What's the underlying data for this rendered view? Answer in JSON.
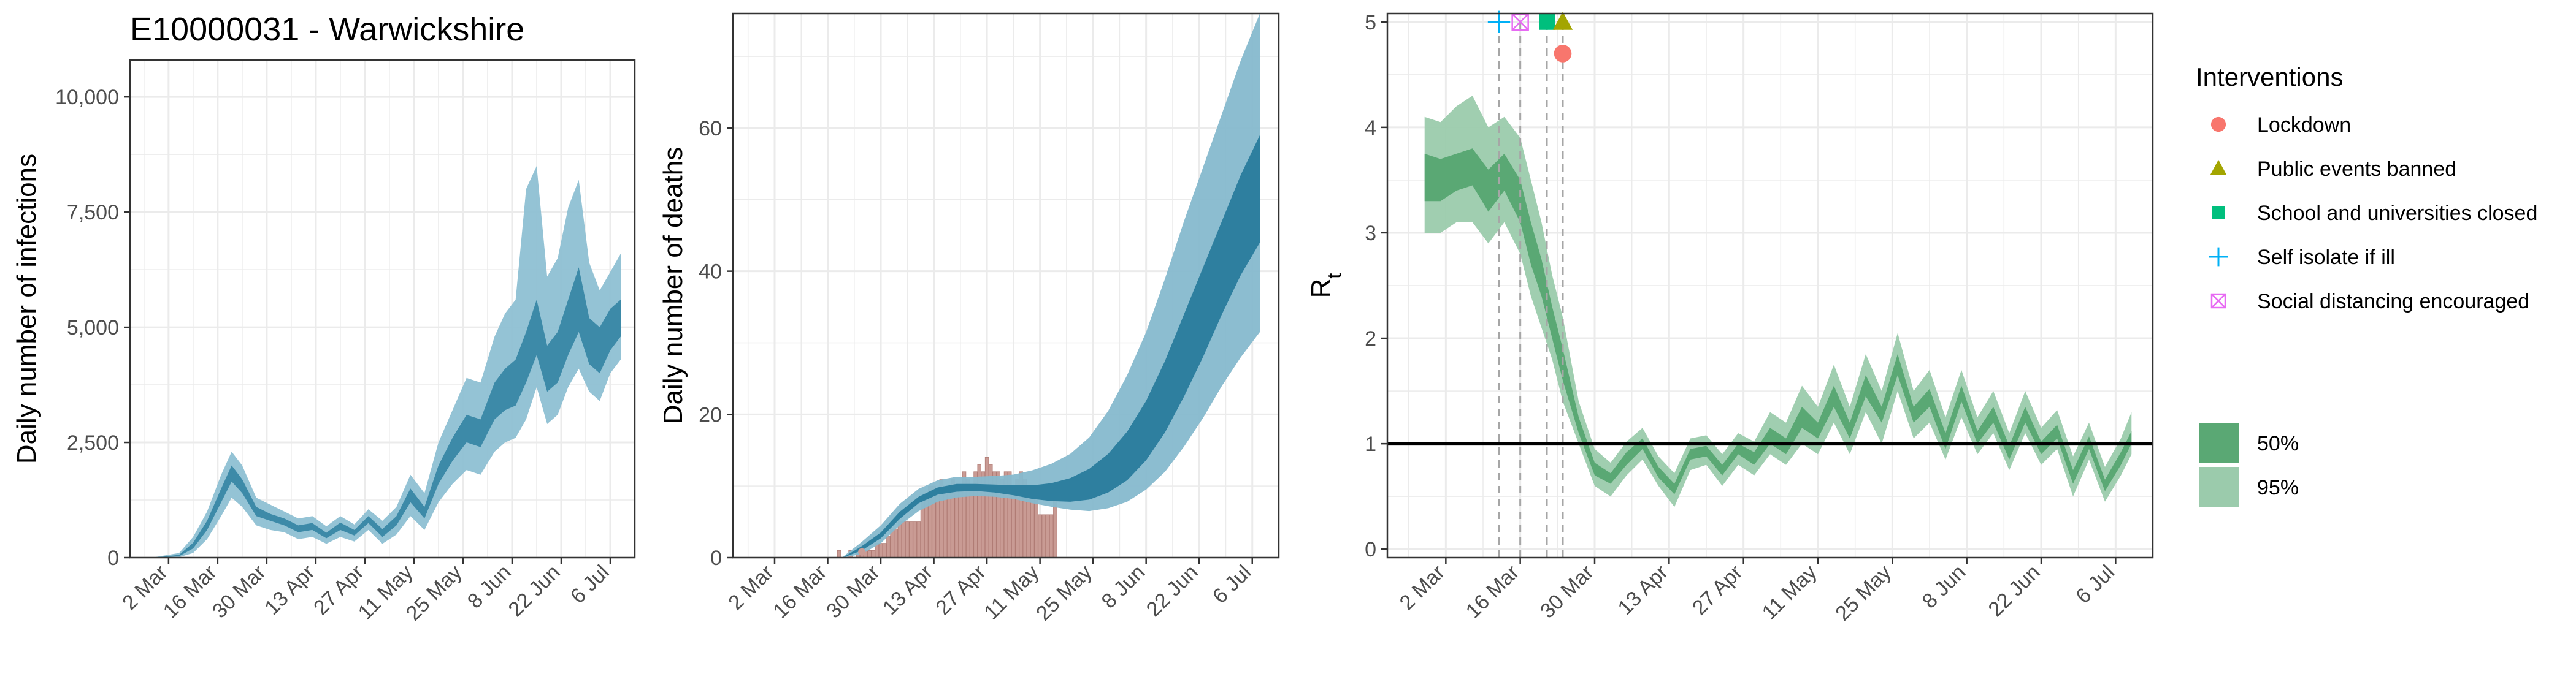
{
  "figure_title": "E10000031 - Warwickshire",
  "colors": {
    "infections_outer": "#8ec0d3",
    "infections_inner": "#3d8aa8",
    "deaths_outer": "#86b9cd",
    "deaths_inner": "#2e7f9f",
    "deaths_bar": "#c99b94",
    "rt_outer": "#9bcbac",
    "rt_inner": "#5aa874",
    "grid": "#ebebeb",
    "panel_border": "#333333"
  },
  "legend": {
    "interventions_title": "Interventions",
    "interventions": [
      {
        "label": "Lockdown",
        "shape": "circle",
        "color": "#f8766d"
      },
      {
        "label": "Public events banned",
        "shape": "triangle",
        "color": "#a3a500"
      },
      {
        "label": "School and universities closed",
        "shape": "square",
        "color": "#00bf7d"
      },
      {
        "label": "Self isolate if ill",
        "shape": "plus",
        "color": "#00b0f6"
      },
      {
        "label": "Social distancing encouraged",
        "shape": "boxcross",
        "color": "#e76bf3"
      }
    ],
    "band_title": "",
    "bands": [
      {
        "label": "50%",
        "color": "#5aa874"
      },
      {
        "label": "95%",
        "color": "#9bcbac"
      }
    ]
  },
  "chart_data": [
    {
      "id": "infections",
      "type": "area",
      "title": "E10000031 - Warwickshire",
      "xlabel": "",
      "ylabel": "Daily number of infections",
      "x_type": "date",
      "xlim": [
        "2020-02-20",
        "2020-07-13"
      ],
      "ylim": [
        0,
        10800
      ],
      "x_ticks": [
        {
          "date": "2020-03-02",
          "label": "2 Mar"
        },
        {
          "date": "2020-03-16",
          "label": "16 Mar"
        },
        {
          "date": "2020-03-30",
          "label": "30 Mar"
        },
        {
          "date": "2020-04-13",
          "label": "13 Apr"
        },
        {
          "date": "2020-04-27",
          "label": "27 Apr"
        },
        {
          "date": "2020-05-11",
          "label": "11 May"
        },
        {
          "date": "2020-05-25",
          "label": "25 May"
        },
        {
          "date": "2020-06-08",
          "label": "8 Jun"
        },
        {
          "date": "2020-06-22",
          "label": "22 Jun"
        },
        {
          "date": "2020-07-06",
          "label": "6 Jul"
        }
      ],
      "y_ticks": [
        {
          "value": 0,
          "label": "0"
        },
        {
          "value": 2500,
          "label": "2,500"
        },
        {
          "value": 5000,
          "label": "5,000"
        },
        {
          "value": 7500,
          "label": "7,500"
        },
        {
          "value": 10000,
          "label": "10,000"
        }
      ],
      "bands": {
        "dates": [
          "2020-02-27",
          "2020-03-05",
          "2020-03-09",
          "2020-03-13",
          "2020-03-17",
          "2020-03-20",
          "2020-03-23",
          "2020-03-27",
          "2020-03-31",
          "2020-04-04",
          "2020-04-08",
          "2020-04-12",
          "2020-04-16",
          "2020-04-20",
          "2020-04-24",
          "2020-04-28",
          "2020-05-02",
          "2020-05-06",
          "2020-05-10",
          "2020-05-14",
          "2020-05-18",
          "2020-05-22",
          "2020-05-26",
          "2020-05-30",
          "2020-06-03",
          "2020-06-06",
          "2020-06-09",
          "2020-06-12",
          "2020-06-15",
          "2020-06-18",
          "2020-06-21",
          "2020-06-24",
          "2020-06-27",
          "2020-06-30",
          "2020-07-03",
          "2020-07-06",
          "2020-07-09"
        ],
        "outer_low": [
          0,
          10,
          100,
          400,
          900,
          1300,
          1100,
          700,
          600,
          550,
          400,
          450,
          300,
          450,
          350,
          600,
          300,
          500,
          900,
          600,
          1200,
          1600,
          1900,
          1800,
          2300,
          2500,
          2600,
          3000,
          3700,
          2900,
          3100,
          3700,
          4100,
          3600,
          3400,
          4000,
          4300
        ],
        "inner_low": [
          0,
          30,
          200,
          600,
          1200,
          1650,
          1400,
          900,
          800,
          700,
          550,
          600,
          420,
          600,
          480,
          750,
          450,
          700,
          1200,
          850,
          1600,
          2100,
          2500,
          2400,
          3000,
          3200,
          3300,
          3800,
          4400,
          3600,
          3800,
          4400,
          4900,
          4200,
          4000,
          4500,
          4800
        ],
        "inner_high": [
          0,
          60,
          320,
          800,
          1500,
          2000,
          1700,
          1100,
          950,
          850,
          700,
          750,
          540,
          760,
          600,
          900,
          620,
          900,
          1500,
          1100,
          2000,
          2600,
          3100,
          3000,
          3800,
          4100,
          4300,
          4900,
          5600,
          4600,
          4900,
          5600,
          6300,
          5200,
          5000,
          5400,
          5600
        ],
        "outer_high": [
          10,
          100,
          450,
          1000,
          1800,
          2300,
          2000,
          1300,
          1150,
          1000,
          850,
          900,
          680,
          900,
          720,
          1050,
          800,
          1100,
          1800,
          1400,
          2500,
          3200,
          3900,
          3800,
          4800,
          5300,
          5600,
          8000,
          8500,
          6100,
          6500,
          7600,
          8200,
          6400,
          5800,
          6200,
          6600
        ]
      }
    },
    {
      "id": "deaths",
      "type": "area",
      "title": "",
      "xlabel": "",
      "ylabel": "Daily number of deaths",
      "x_type": "date",
      "xlim": [
        "2020-02-20",
        "2020-07-13"
      ],
      "ylim": [
        0,
        76
      ],
      "x_ticks": [
        {
          "date": "2020-03-02",
          "label": "2 Mar"
        },
        {
          "date": "2020-03-16",
          "label": "16 Mar"
        },
        {
          "date": "2020-03-30",
          "label": "30 Mar"
        },
        {
          "date": "2020-04-13",
          "label": "13 Apr"
        },
        {
          "date": "2020-04-27",
          "label": "27 Apr"
        },
        {
          "date": "2020-05-11",
          "label": "11 May"
        },
        {
          "date": "2020-05-25",
          "label": "25 May"
        },
        {
          "date": "2020-06-08",
          "label": "8 Jun"
        },
        {
          "date": "2020-06-22",
          "label": "22 Jun"
        },
        {
          "date": "2020-07-06",
          "label": "6 Jul"
        }
      ],
      "y_ticks": [
        {
          "value": 0,
          "label": "0"
        },
        {
          "value": 20,
          "label": "20"
        },
        {
          "value": 40,
          "label": "40"
        },
        {
          "value": 60,
          "label": "60"
        }
      ],
      "bands": {
        "dates": [
          "2020-03-20",
          "2020-03-25",
          "2020-03-30",
          "2020-04-04",
          "2020-04-09",
          "2020-04-14",
          "2020-04-19",
          "2020-04-24",
          "2020-04-29",
          "2020-05-04",
          "2020-05-09",
          "2020-05-14",
          "2020-05-19",
          "2020-05-24",
          "2020-05-29",
          "2020-06-03",
          "2020-06-08",
          "2020-06-13",
          "2020-06-18",
          "2020-06-23",
          "2020-06-28",
          "2020-07-03",
          "2020-07-08"
        ],
        "outer_low": [
          0,
          0.5,
          2,
          4.5,
          6.5,
          7.8,
          8.4,
          8.6,
          8.5,
          8.2,
          7.6,
          7.1,
          6.7,
          6.5,
          6.9,
          7.8,
          9.5,
          12,
          15.5,
          19.5,
          24,
          28,
          31.5
        ],
        "inner_low": [
          0,
          1,
          2.7,
          5.4,
          7.6,
          8.8,
          9.2,
          9.3,
          9.1,
          8.7,
          8.2,
          7.9,
          7.8,
          8.1,
          9.1,
          10.8,
          13.6,
          17.5,
          22.5,
          28,
          34,
          39.5,
          44
        ],
        "inner_high": [
          0,
          1.6,
          3.5,
          6.4,
          8.5,
          9.8,
          10.3,
          10.3,
          10.2,
          10.1,
          10.1,
          10.4,
          11.1,
          12.4,
          14.5,
          17.6,
          21.9,
          27.5,
          34,
          40.5,
          47,
          53.5,
          59
        ],
        "outer_high": [
          0.1,
          2.2,
          4.5,
          7.5,
          9.6,
          10.8,
          11.3,
          11.3,
          11.4,
          11.6,
          12.2,
          13.1,
          14.5,
          16.8,
          20.5,
          25.5,
          31.5,
          39,
          47,
          54.5,
          62,
          69.5,
          76
        ]
      },
      "observed_deaths": {
        "dates": [
          "2020-03-19",
          "2020-03-22",
          "2020-03-24",
          "2020-03-25",
          "2020-03-26",
          "2020-03-27",
          "2020-03-28",
          "2020-03-29",
          "2020-03-30",
          "2020-03-31",
          "2020-04-01",
          "2020-04-02",
          "2020-04-03",
          "2020-04-04",
          "2020-04-05",
          "2020-04-06",
          "2020-04-07",
          "2020-04-08",
          "2020-04-09",
          "2020-04-10",
          "2020-04-11",
          "2020-04-12",
          "2020-04-13",
          "2020-04-14",
          "2020-04-15",
          "2020-04-16",
          "2020-04-17",
          "2020-04-18",
          "2020-04-19",
          "2020-04-20",
          "2020-04-21",
          "2020-04-22",
          "2020-04-23",
          "2020-04-24",
          "2020-04-25",
          "2020-04-26",
          "2020-04-27",
          "2020-04-28",
          "2020-04-29",
          "2020-04-30",
          "2020-05-01",
          "2020-05-02",
          "2020-05-03",
          "2020-05-04",
          "2020-05-05",
          "2020-05-06",
          "2020-05-07",
          "2020-05-08",
          "2020-05-09",
          "2020-05-10",
          "2020-05-11",
          "2020-05-12",
          "2020-05-13",
          "2020-05-14",
          "2020-05-15"
        ],
        "values": [
          1,
          1,
          1,
          1,
          1,
          1,
          1,
          2,
          2,
          2,
          3,
          4,
          4,
          5,
          5,
          5,
          5,
          5,
          5,
          8,
          9,
          10,
          10,
          9,
          11,
          10,
          9,
          11,
          10,
          10,
          12,
          11,
          10,
          12,
          13,
          12,
          14,
          13,
          12,
          12,
          11,
          12,
          12,
          10,
          11,
          12,
          11,
          10,
          9,
          9,
          6,
          6,
          6,
          6,
          8
        ]
      },
      "reported_death_marker": {
        "date": "2020-03-25",
        "value": 0.8
      }
    },
    {
      "id": "rt",
      "type": "area",
      "title": "",
      "xlabel": "",
      "ylabel": "R",
      "ylabel_subscript": "t",
      "x_type": "date",
      "xlim": [
        "2020-02-20",
        "2020-07-13"
      ],
      "ylim": [
        -0.08,
        5.08
      ],
      "reference_line": 1,
      "x_ticks": [
        {
          "date": "2020-03-02",
          "label": "2 Mar"
        },
        {
          "date": "2020-03-16",
          "label": "16 Mar"
        },
        {
          "date": "2020-03-30",
          "label": "30 Mar"
        },
        {
          "date": "2020-04-13",
          "label": "13 Apr"
        },
        {
          "date": "2020-04-27",
          "label": "27 Apr"
        },
        {
          "date": "2020-05-11",
          "label": "11 May"
        },
        {
          "date": "2020-05-25",
          "label": "25 May"
        },
        {
          "date": "2020-06-08",
          "label": "8 Jun"
        },
        {
          "date": "2020-06-22",
          "label": "22 Jun"
        },
        {
          "date": "2020-07-06",
          "label": "6 Jul"
        }
      ],
      "y_ticks": [
        {
          "value": 0,
          "label": "0"
        },
        {
          "value": 1,
          "label": "1"
        },
        {
          "value": 2,
          "label": "2"
        },
        {
          "value": 3,
          "label": "3"
        },
        {
          "value": 4,
          "label": "4"
        },
        {
          "value": 5,
          "label": "5"
        }
      ],
      "bands": {
        "dates": [
          "2020-02-27",
          "2020-03-01",
          "2020-03-04",
          "2020-03-07",
          "2020-03-10",
          "2020-03-13",
          "2020-03-16",
          "2020-03-18",
          "2020-03-20",
          "2020-03-22",
          "2020-03-24",
          "2020-03-27",
          "2020-03-30",
          "2020-04-02",
          "2020-04-05",
          "2020-04-08",
          "2020-04-11",
          "2020-04-14",
          "2020-04-17",
          "2020-04-20",
          "2020-04-23",
          "2020-04-26",
          "2020-04-29",
          "2020-05-02",
          "2020-05-05",
          "2020-05-08",
          "2020-05-11",
          "2020-05-14",
          "2020-05-17",
          "2020-05-20",
          "2020-05-23",
          "2020-05-26",
          "2020-05-29",
          "2020-06-01",
          "2020-06-04",
          "2020-06-07",
          "2020-06-10",
          "2020-06-13",
          "2020-06-16",
          "2020-06-19",
          "2020-06-22",
          "2020-06-25",
          "2020-06-28",
          "2020-07-01",
          "2020-07-04",
          "2020-07-07",
          "2020-07-09"
        ],
        "outer_low": [
          3.0,
          3.0,
          3.1,
          3.1,
          2.9,
          3.1,
          2.8,
          2.4,
          2.1,
          1.8,
          1.4,
          1.0,
          0.6,
          0.5,
          0.7,
          0.85,
          0.6,
          0.4,
          0.75,
          0.8,
          0.6,
          0.8,
          0.7,
          0.9,
          0.8,
          1.0,
          0.9,
          1.2,
          0.9,
          1.3,
          1.0,
          1.5,
          1.05,
          1.2,
          0.85,
          1.25,
          0.9,
          1.1,
          0.75,
          1.1,
          0.8,
          0.95,
          0.5,
          0.85,
          0.45,
          0.7,
          0.9
        ],
        "inner_low": [
          3.3,
          3.3,
          3.4,
          3.45,
          3.2,
          3.4,
          3.1,
          2.7,
          2.4,
          2.0,
          1.6,
          1.1,
          0.7,
          0.62,
          0.8,
          0.95,
          0.68,
          0.52,
          0.85,
          0.88,
          0.7,
          0.9,
          0.8,
          1.0,
          0.9,
          1.15,
          1.05,
          1.35,
          1.05,
          1.45,
          1.2,
          1.65,
          1.2,
          1.35,
          0.95,
          1.4,
          1.0,
          1.2,
          0.85,
          1.2,
          0.9,
          1.05,
          0.62,
          0.95,
          0.55,
          0.8,
          1.0
        ],
        "inner_high": [
          3.75,
          3.7,
          3.75,
          3.8,
          3.6,
          3.75,
          3.5,
          3.1,
          2.75,
          2.3,
          1.9,
          1.25,
          0.82,
          0.72,
          0.92,
          1.05,
          0.78,
          0.62,
          0.95,
          0.98,
          0.8,
          1.0,
          0.92,
          1.15,
          1.05,
          1.35,
          1.2,
          1.55,
          1.2,
          1.65,
          1.35,
          1.85,
          1.35,
          1.52,
          1.1,
          1.55,
          1.12,
          1.35,
          0.98,
          1.35,
          1.02,
          1.18,
          0.75,
          1.07,
          0.66,
          0.92,
          1.12
        ],
        "outer_high": [
          4.1,
          4.05,
          4.2,
          4.3,
          4.0,
          4.1,
          3.9,
          3.5,
          3.1,
          2.6,
          2.2,
          1.4,
          0.95,
          0.82,
          1.02,
          1.15,
          0.88,
          0.72,
          1.05,
          1.08,
          0.9,
          1.1,
          1.02,
          1.3,
          1.2,
          1.55,
          1.35,
          1.75,
          1.35,
          1.85,
          1.5,
          2.05,
          1.5,
          1.7,
          1.25,
          1.7,
          1.25,
          1.5,
          1.1,
          1.5,
          1.15,
          1.32,
          0.88,
          1.2,
          0.78,
          1.05,
          1.3
        ]
      },
      "interventions": [
        {
          "label": "Self isolate if ill",
          "date": "2020-03-12",
          "shape": "plus",
          "color": "#00b0f6",
          "marker_y": 5
        },
        {
          "label": "Social distancing encouraged",
          "date": "2020-03-16",
          "shape": "boxcross",
          "color": "#e76bf3",
          "marker_y": 5
        },
        {
          "label": "School and universities closed",
          "date": "2020-03-21",
          "shape": "square",
          "color": "#00bf7d",
          "marker_y": 5
        },
        {
          "label": "Public events banned",
          "date": "2020-03-24",
          "shape": "triangle",
          "color": "#a3a500",
          "marker_y": 5
        },
        {
          "label": "Lockdown",
          "date": "2020-03-24",
          "shape": "circle",
          "color": "#f8766d",
          "marker_y": 4.7
        }
      ]
    }
  ]
}
